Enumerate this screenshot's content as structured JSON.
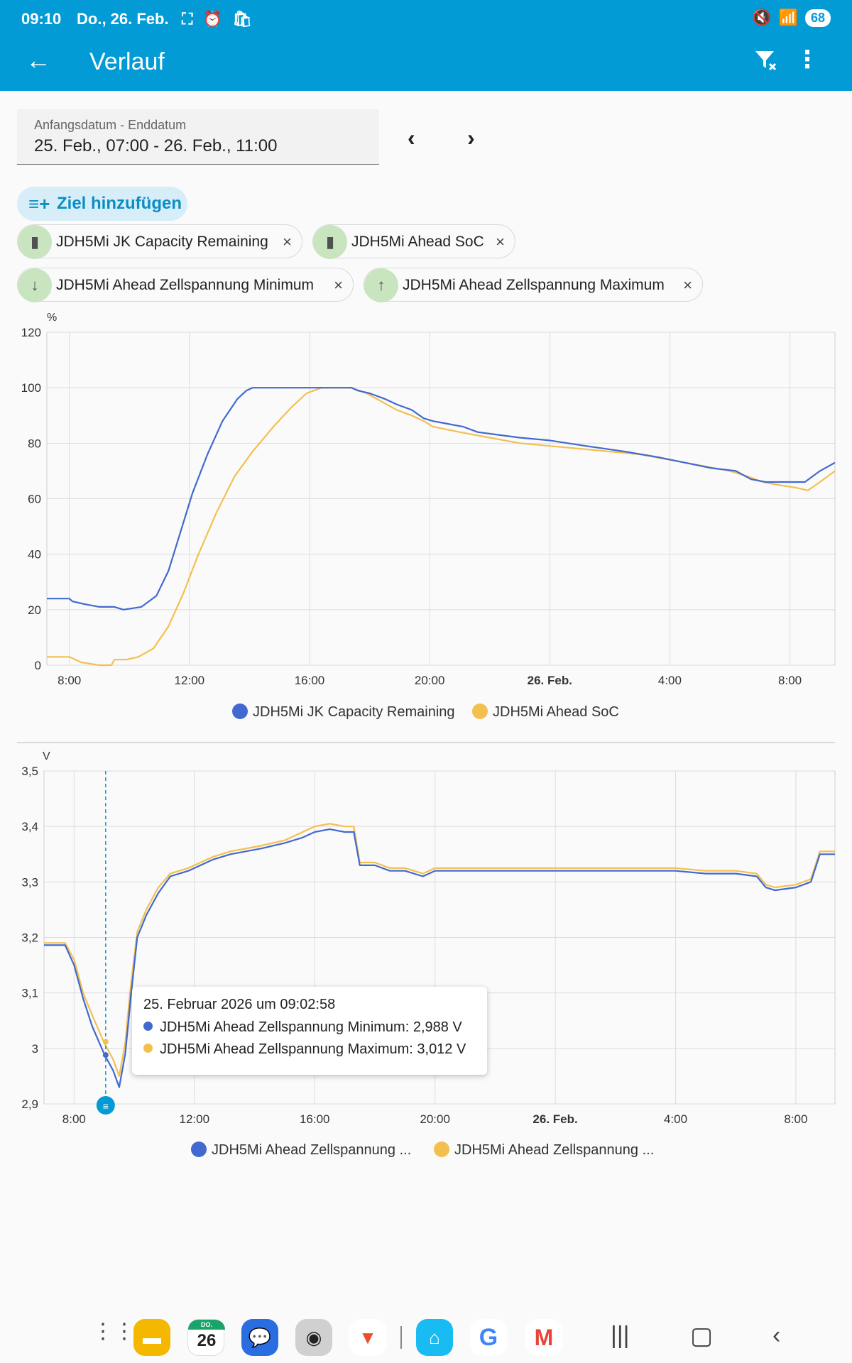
{
  "status": {
    "time": "09:10",
    "date": "Do., 26. Feb.",
    "left_icons": [
      "screenshot-icon",
      "alarm-icon",
      "bag-icon"
    ],
    "right_icons": [
      "mute-icon",
      "wifi-icon"
    ],
    "battery": "68"
  },
  "toolbar": {
    "title": "Verlauf",
    "back_icon": "arrow-left-icon",
    "filter_icon": "filter-clear-icon",
    "more_icon": "more-vert-icon"
  },
  "date_range": {
    "label": "Anfangsdatum - Enddatum",
    "value": "25. Feb., 07:00 - 26. Feb., 11:00",
    "prev_icon": "chevron-left-icon",
    "next_icon": "chevron-right-icon"
  },
  "add_target": {
    "label": "Ziel hinzufügen",
    "icon": "playlist-add-icon"
  },
  "chips": [
    {
      "label": "JDH5Mi JK Capacity Remaining",
      "icon": "battery-icon"
    },
    {
      "label": "JDH5Mi Ahead SoC",
      "icon": "battery-icon"
    },
    {
      "label": "JDH5Mi Ahead Zellspannung Minimum",
      "icon": "arrow-down-icon"
    },
    {
      "label": "JDH5Mi Ahead Zellspannung Maximum",
      "icon": "arrow-up-icon"
    }
  ],
  "colors": {
    "blue": "#4269d0",
    "yellow": "#f3c04f",
    "accent": "#039bd6"
  },
  "chart_data": [
    {
      "type": "line",
      "ylabel": "%",
      "ylim": [
        0,
        120
      ],
      "yticks": [
        "0",
        "20",
        "40",
        "60",
        "80",
        "100",
        "120"
      ],
      "xlim": [
        7.25,
        33.5
      ],
      "xticks": [
        {
          "x": 8,
          "label": "8:00",
          "bold": false
        },
        {
          "x": 12,
          "label": "12:00",
          "bold": false
        },
        {
          "x": 16,
          "label": "16:00",
          "bold": false
        },
        {
          "x": 20,
          "label": "20:00",
          "bold": false
        },
        {
          "x": 24,
          "label": "26. Feb.",
          "bold": true
        },
        {
          "x": 28,
          "label": "4:00",
          "bold": false
        },
        {
          "x": 32,
          "label": "8:00",
          "bold": false
        }
      ],
      "grid": true,
      "legend_position": "bottom",
      "series": [
        {
          "name": "JDH5Mi JK Capacity Remaining",
          "color": "#4269d0",
          "points": [
            [
              7.25,
              24
            ],
            [
              8.0,
              24
            ],
            [
              8.1,
              23
            ],
            [
              8.5,
              22
            ],
            [
              9.0,
              21
            ],
            [
              9.5,
              21
            ],
            [
              9.8,
              20
            ],
            [
              10.4,
              21
            ],
            [
              10.9,
              25
            ],
            [
              11.3,
              34
            ],
            [
              11.7,
              48
            ],
            [
              12.1,
              62
            ],
            [
              12.6,
              76
            ],
            [
              13.1,
              88
            ],
            [
              13.6,
              96
            ],
            [
              13.9,
              99
            ],
            [
              14.1,
              100
            ],
            [
              16.2,
              100
            ],
            [
              17.4,
              100
            ],
            [
              17.6,
              99
            ],
            [
              18.0,
              98
            ],
            [
              18.5,
              96
            ],
            [
              18.9,
              94
            ],
            [
              19.4,
              92
            ],
            [
              19.8,
              89
            ],
            [
              20.1,
              88
            ],
            [
              20.6,
              87
            ],
            [
              21.1,
              86
            ],
            [
              21.6,
              84
            ],
            [
              22.3,
              83
            ],
            [
              23.0,
              82
            ],
            [
              24.0,
              81
            ],
            [
              25.2,
              79
            ],
            [
              26.5,
              77
            ],
            [
              27.6,
              75
            ],
            [
              28.5,
              73
            ],
            [
              29.4,
              71
            ],
            [
              30.2,
              70
            ],
            [
              30.7,
              67
            ],
            [
              31.2,
              66
            ],
            [
              31.9,
              66
            ],
            [
              32.5,
              66
            ],
            [
              33.0,
              70
            ],
            [
              33.5,
              73
            ]
          ]
        },
        {
          "name": "JDH5Mi Ahead SoC",
          "color": "#f3c04f",
          "points": [
            [
              7.25,
              3
            ],
            [
              8.0,
              3
            ],
            [
              8.4,
              1
            ],
            [
              9.0,
              0
            ],
            [
              9.4,
              0
            ],
            [
              9.5,
              2
            ],
            [
              9.9,
              2
            ],
            [
              10.3,
              3
            ],
            [
              10.8,
              6
            ],
            [
              11.3,
              14
            ],
            [
              11.8,
              26
            ],
            [
              12.3,
              40
            ],
            [
              12.9,
              55
            ],
            [
              13.5,
              68
            ],
            [
              14.1,
              77
            ],
            [
              14.8,
              86
            ],
            [
              15.4,
              93
            ],
            [
              15.9,
              98
            ],
            [
              16.4,
              100
            ],
            [
              17.4,
              100
            ],
            [
              17.9,
              98
            ],
            [
              18.4,
              95
            ],
            [
              18.9,
              92
            ],
            [
              19.4,
              90
            ],
            [
              19.8,
              88
            ],
            [
              20.1,
              86
            ],
            [
              21.0,
              84
            ],
            [
              22.0,
              82
            ],
            [
              23.0,
              80
            ],
            [
              24.0,
              79
            ],
            [
              25.0,
              78
            ],
            [
              26.0,
              77
            ],
            [
              27.0,
              76
            ],
            [
              28.0,
              74
            ],
            [
              29.0,
              72
            ],
            [
              30.0,
              70
            ],
            [
              30.6,
              68
            ],
            [
              31.1,
              66
            ],
            [
              31.6,
              65
            ],
            [
              32.2,
              64
            ],
            [
              32.6,
              63
            ],
            [
              33.0,
              66
            ],
            [
              33.5,
              70
            ]
          ]
        }
      ]
    },
    {
      "type": "line",
      "ylabel": "V",
      "ylim": [
        2.9,
        3.5
      ],
      "yticks": [
        "2,9",
        "3",
        "3,1",
        "3,2",
        "3,3",
        "3,4",
        "3,5"
      ],
      "xlim": [
        7.0,
        33.3
      ],
      "xticks": [
        {
          "x": 8,
          "label": "8:00",
          "bold": false
        },
        {
          "x": 12,
          "label": "12:00",
          "bold": false
        },
        {
          "x": 16,
          "label": "16:00",
          "bold": false
        },
        {
          "x": 20,
          "label": "20:00",
          "bold": false
        },
        {
          "x": 24,
          "label": "26. Feb.",
          "bold": true
        },
        {
          "x": 28,
          "label": "4:00",
          "bold": false
        },
        {
          "x": 32,
          "label": "8:00",
          "bold": false
        }
      ],
      "grid": true,
      "legend_position": "bottom",
      "cursor_x": 9.05,
      "series": [
        {
          "name": "JDH5Mi Ahead Zellspannung Minimum",
          "legend": "JDH5Mi Ahead Zellspannung ...",
          "color": "#4269d0",
          "points": [
            [
              7.0,
              3.186
            ],
            [
              7.7,
              3.186
            ],
            [
              8.0,
              3.15
            ],
            [
              8.3,
              3.09
            ],
            [
              8.6,
              3.04
            ],
            [
              9.0,
              2.99
            ],
            [
              9.3,
              2.96
            ],
            [
              9.5,
              2.93
            ],
            [
              9.7,
              2.99
            ],
            [
              9.9,
              3.1
            ],
            [
              10.1,
              3.2
            ],
            [
              10.4,
              3.24
            ],
            [
              10.8,
              3.28
            ],
            [
              11.2,
              3.31
            ],
            [
              11.8,
              3.32
            ],
            [
              12.6,
              3.34
            ],
            [
              13.2,
              3.35
            ],
            [
              14.2,
              3.36
            ],
            [
              15.0,
              3.37
            ],
            [
              15.6,
              3.38
            ],
            [
              16.0,
              3.39
            ],
            [
              16.5,
              3.395
            ],
            [
              17.0,
              3.39
            ],
            [
              17.3,
              3.39
            ],
            [
              17.5,
              3.33
            ],
            [
              18.0,
              3.33
            ],
            [
              18.5,
              3.32
            ],
            [
              19.0,
              3.32
            ],
            [
              19.6,
              3.31
            ],
            [
              20.0,
              3.32
            ],
            [
              21.0,
              3.32
            ],
            [
              22.0,
              3.32
            ],
            [
              23.0,
              3.32
            ],
            [
              24.0,
              3.32
            ],
            [
              25.0,
              3.32
            ],
            [
              26.0,
              3.32
            ],
            [
              27.0,
              3.32
            ],
            [
              28.0,
              3.32
            ],
            [
              29.0,
              3.315
            ],
            [
              30.0,
              3.315
            ],
            [
              30.7,
              3.31
            ],
            [
              31.0,
              3.29
            ],
            [
              31.3,
              3.285
            ],
            [
              32.0,
              3.29
            ],
            [
              32.5,
              3.3
            ],
            [
              32.8,
              3.35
            ],
            [
              33.3,
              3.35
            ]
          ]
        },
        {
          "name": "JDH5Mi Ahead Zellspannung Maximum",
          "legend": "JDH5Mi Ahead Zellspannung ...",
          "color": "#f3c04f",
          "points": [
            [
              7.0,
              3.19
            ],
            [
              7.7,
              3.19
            ],
            [
              8.0,
              3.16
            ],
            [
              8.3,
              3.1
            ],
            [
              8.6,
              3.06
            ],
            [
              9.0,
              3.01
            ],
            [
              9.3,
              2.98
            ],
            [
              9.5,
              2.95
            ],
            [
              9.7,
              3.01
            ],
            [
              9.9,
              3.12
            ],
            [
              10.1,
              3.21
            ],
            [
              10.4,
              3.25
            ],
            [
              10.8,
              3.29
            ],
            [
              11.2,
              3.315
            ],
            [
              11.8,
              3.325
            ],
            [
              12.6,
              3.345
            ],
            [
              13.2,
              3.355
            ],
            [
              14.2,
              3.365
            ],
            [
              15.0,
              3.375
            ],
            [
              15.6,
              3.39
            ],
            [
              16.0,
              3.4
            ],
            [
              16.5,
              3.405
            ],
            [
              17.0,
              3.4
            ],
            [
              17.3,
              3.4
            ],
            [
              17.5,
              3.335
            ],
            [
              18.0,
              3.335
            ],
            [
              18.5,
              3.325
            ],
            [
              19.0,
              3.325
            ],
            [
              19.6,
              3.315
            ],
            [
              20.0,
              3.325
            ],
            [
              21.0,
              3.325
            ],
            [
              22.0,
              3.325
            ],
            [
              23.0,
              3.325
            ],
            [
              24.0,
              3.325
            ],
            [
              25.0,
              3.325
            ],
            [
              26.0,
              3.325
            ],
            [
              27.0,
              3.325
            ],
            [
              28.0,
              3.325
            ],
            [
              29.0,
              3.32
            ],
            [
              30.0,
              3.32
            ],
            [
              30.7,
              3.315
            ],
            [
              31.0,
              3.295
            ],
            [
              31.3,
              3.29
            ],
            [
              32.0,
              3.295
            ],
            [
              32.5,
              3.305
            ],
            [
              32.8,
              3.355
            ],
            [
              33.3,
              3.355
            ]
          ]
        }
      ]
    }
  ],
  "tooltip": {
    "title": "25. Februar 2026 um 09:02:58",
    "rows": [
      {
        "text": "JDH5Mi Ahead Zellspannung Minimum: 2,988 V",
        "color": "#4269d0"
      },
      {
        "text": "JDH5Mi Ahead Zellspannung Maximum: 3,012 V",
        "color": "#f3c04f"
      }
    ]
  },
  "dock": {
    "apps": [
      {
        "name": "app-drawer-icon",
        "label": "⋮⋮⋮",
        "color": ""
      },
      {
        "name": "files-app-icon",
        "label": "",
        "color": "#f5b800"
      },
      {
        "name": "calendar-app-icon",
        "label": "26",
        "color": "#ffffff"
      },
      {
        "name": "messages-app-icon",
        "label": "",
        "color": "#2a6de0"
      },
      {
        "name": "camera-app-icon",
        "label": "●",
        "color": "#d0d0d0"
      },
      {
        "name": "brave-app-icon",
        "label": "🦁",
        "color": "#ffffff"
      },
      {
        "name": "home-assistant-app-icon",
        "label": "⌂",
        "color": "#18bcf2"
      },
      {
        "name": "google-app-icon",
        "label": "G",
        "color": "#ffffff"
      },
      {
        "name": "gmail-app-icon",
        "label": "M",
        "color": "#ffffff"
      }
    ],
    "calendar_small": "DO."
  }
}
